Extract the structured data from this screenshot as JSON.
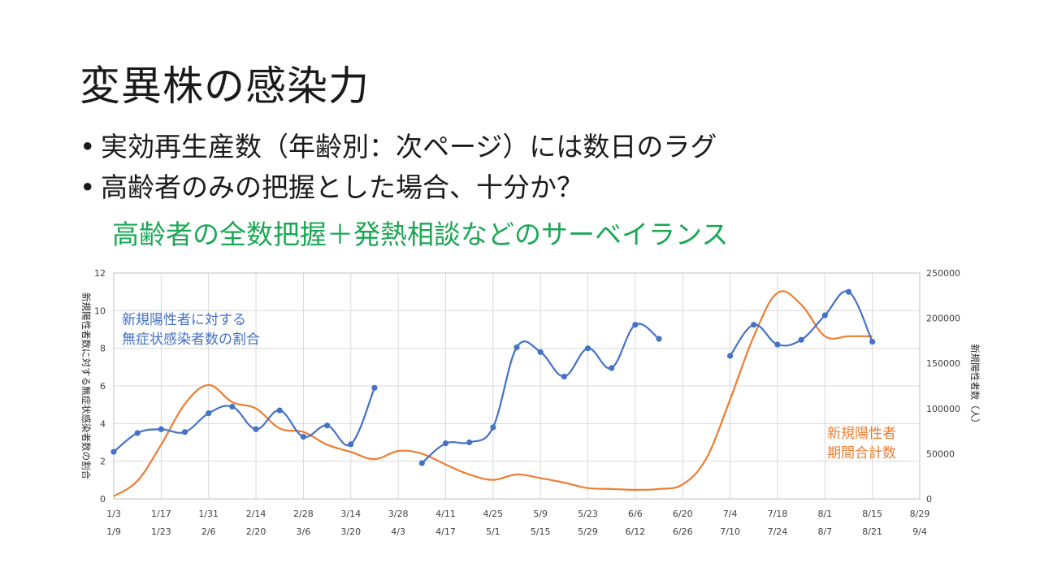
{
  "slide": {
    "title": "変異株の感染力",
    "bullets": [
      "実効再生産数（年齢別：次ページ）には数日のラグ",
      "高齢者のみの把握とした場合、十分か？"
    ],
    "highlight": "高齢者の全数把握＋発熱相談などのサーベイランス",
    "highlight_color": "#1aa855"
  },
  "chart_data": {
    "type": "line",
    "title": "",
    "xlabel": "",
    "ylabel_left": "新規陽性者数に対する無症状感染者数の割合",
    "ylabel_right": "新規陽性者数（人）",
    "ylim_left": [
      0,
      12
    ],
    "yticks_left": [
      "0",
      "2",
      "4",
      "6",
      "8",
      "10",
      "12"
    ],
    "ylim_right": [
      0,
      250000
    ],
    "yticks_right": [
      "0",
      "50000",
      "100000",
      "150000",
      "200000",
      "250000"
    ],
    "grid": true,
    "x_labels_top": [
      "1/3",
      "1/17",
      "1/31",
      "2/14",
      "2/28",
      "3/14",
      "3/28",
      "4/11",
      "4/25",
      "5/9",
      "5/23",
      "6/6",
      "6/20",
      "7/4",
      "7/18",
      "8/1",
      "8/15",
      "8/29"
    ],
    "x_labels_bottom": [
      "1/9",
      "1/23",
      "2/6",
      "2/20",
      "3/6",
      "3/20",
      "4/3",
      "4/17",
      "5/1",
      "5/15",
      "5/29",
      "6/12",
      "6/26",
      "7/10",
      "7/24",
      "8/7",
      "8/21",
      "9/4"
    ],
    "series": [
      {
        "name": "新規陽性者に対する無症状感染者数の割合",
        "label_lines": [
          "新規陽性者に対する",
          "無症状感染者数の割合"
        ],
        "axis": "left",
        "color": "#4472c4",
        "markers": true,
        "segments": [
          {
            "x": [
              0,
              1,
              2,
              3,
              4,
              5,
              6,
              7,
              8,
              9,
              10,
              11
            ],
            "y": [
              2.5,
              3.5,
              3.7,
              3.55,
              4.55,
              4.9,
              3.7,
              4.7,
              3.3,
              3.9,
              2.9,
              5.9
            ]
          },
          {
            "x": [
              13,
              14,
              15,
              16,
              17,
              18,
              19,
              20,
              21,
              22,
              23
            ],
            "y": [
              1.9,
              2.95,
              3.0,
              3.8,
              8.05,
              7.8,
              6.5,
              8.0,
              6.95,
              9.25,
              8.5
            ]
          },
          {
            "x": [
              26,
              27,
              28,
              29,
              30,
              31,
              32
            ],
            "y": [
              7.6,
              9.25,
              8.2,
              8.45,
              9.75,
              11.0,
              8.35
            ]
          }
        ]
      },
      {
        "name": "新規陽性者期間合計数",
        "label_lines": [
          "新規陽性者",
          "期間合計数"
        ],
        "axis": "right",
        "color": "#ed7d31",
        "markers": false,
        "x": [
          0,
          1,
          2,
          3,
          4,
          5,
          6,
          7,
          8,
          9,
          10,
          11,
          12,
          13,
          14,
          15,
          16,
          17,
          18,
          19,
          20,
          21,
          22,
          23,
          24,
          25,
          26,
          27,
          28,
          29,
          30,
          31,
          32
        ],
        "y": [
          3000,
          20000,
          60000,
          105000,
          126000,
          107000,
          100000,
          78000,
          74000,
          60000,
          52000,
          44000,
          53000,
          50000,
          38000,
          27000,
          21000,
          27000,
          23000,
          18000,
          12000,
          11000,
          10000,
          11000,
          16000,
          45000,
          110000,
          180000,
          228000,
          215000,
          180000,
          180000,
          180000
        ]
      }
    ]
  }
}
